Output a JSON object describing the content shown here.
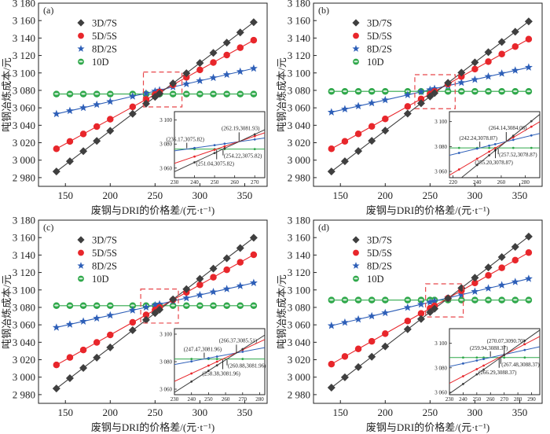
{
  "figure": {
    "xlabel": "废钢与DRI的价格差/(元·t⁻¹)",
    "ylabel": "吨钢冶炼成本/元",
    "colors": {
      "3D/7S": "#3f3f3f",
      "5D/5S": "#e8262b",
      "8D/2S": "#2e5fb8",
      "10D": "#2fa84a",
      "highlight_box": "#e8474b"
    },
    "legend": [
      {
        "name": "3D/7S",
        "marker": "diamond"
      },
      {
        "name": "5D/5S",
        "marker": "circle"
      },
      {
        "name": "8D/2S",
        "marker": "star"
      },
      {
        "name": "10D",
        "marker": "sphere"
      }
    ]
  },
  "chart_data": [
    {
      "type": "line",
      "panel_label": "(a)",
      "title": "",
      "xlabel": "废钢与DRI的价格差/(元·t⁻¹)",
      "ylabel": "吨钢冶炼成本/元",
      "xlim": [
        120,
        375
      ],
      "ylim": [
        2970,
        3180
      ],
      "xticks": [
        150,
        200,
        250,
        300,
        350
      ],
      "xtick_labels": [
        "150",
        "200",
        "250",
        "300",
        "350"
      ],
      "yticks": [
        2980,
        3000,
        3020,
        3040,
        3060,
        3080,
        3100,
        3120,
        3140,
        3160,
        3180
      ],
      "ytick_labels": [
        "2 980",
        "3 000",
        "3 020",
        "3 040",
        "3 060",
        "3 080",
        "3 100",
        "3 120",
        "3 140",
        "3 160",
        "3 180"
      ],
      "legend_position": "upper-left",
      "grid": false,
      "x": [
        140,
        155,
        170,
        185,
        200,
        225,
        240,
        250,
        255,
        270,
        285,
        300,
        315,
        330,
        345,
        360
      ],
      "series": [
        {
          "name": "3D/7S",
          "values": [
            2987.0,
            2998.7,
            3010.3,
            3022.0,
            3033.7,
            3053.1,
            3064.8,
            3072.5,
            3076.4,
            3088.1,
            3099.7,
            3111.4,
            3123.0,
            3134.7,
            3146.4,
            3158.1
          ]
        },
        {
          "name": "5D/5S",
          "values": [
            3013.0,
            3021.5,
            3030.0,
            3038.5,
            3046.9,
            3061.1,
            3069.6,
            3075.2,
            3078.1,
            3086.5,
            3095.0,
            3103.5,
            3112.0,
            3120.5,
            3129.0,
            3137.5
          ]
        },
        {
          "name": "8D/2S",
          "values": [
            3053.0,
            3056.6,
            3060.1,
            3063.7,
            3067.2,
            3073.2,
            3076.7,
            3079.1,
            3080.3,
            3083.9,
            3087.4,
            3091.0,
            3094.5,
            3098.1,
            3101.6,
            3105.2
          ]
        },
        {
          "name": "10D",
          "values": [
            3075.82,
            3075.82,
            3075.82,
            3075.82,
            3075.82,
            3075.82,
            3075.82,
            3075.82,
            3075.82,
            3075.82,
            3075.82,
            3075.82,
            3075.82,
            3075.82,
            3075.82,
            3075.82
          ]
        }
      ],
      "highlight_region": {
        "x": [
          237,
          280
        ],
        "y": [
          3061,
          3101
        ]
      },
      "inset": {
        "xlim": [
          230,
          275
        ],
        "ylim": [
          3052,
          3107
        ],
        "xticks": [
          230,
          240,
          250,
          260,
          270
        ],
        "xtick_labels": [
          "230",
          "240",
          "250",
          "260",
          "270"
        ],
        "yticks": [
          3060,
          3080,
          3100
        ],
        "ytick_labels": [
          "3 060",
          "3 080",
          "3 100"
        ],
        "marker_x": [
          240,
          250,
          255,
          270
        ],
        "annotations": [
          {
            "text": "(236.17,3075.82)",
            "x": 236.17,
            "y": 3075.82,
            "arrow": "up",
            "label_pos": "above-left"
          },
          {
            "text": "(262.19,3081.93)",
            "x": 262.19,
            "y": 3081.93,
            "arrow": "up",
            "label_pos": "above"
          },
          {
            "text": "(254.22,3075.82)",
            "x": 254.22,
            "y": 3075.82,
            "arrow": "down",
            "label_pos": "right"
          },
          {
            "text": "(251.04,3075.82)",
            "x": 251.04,
            "y": 3075.82,
            "arrow": "down",
            "label_pos": "below"
          }
        ]
      }
    },
    {
      "type": "line",
      "panel_label": "(b)",
      "title": "",
      "xlabel": "废钢与DRI的价格差/(元·t⁻¹)",
      "ylabel": "吨钢冶炼成本/元",
      "xlim": [
        120,
        375
      ],
      "ylim": [
        2970,
        3180
      ],
      "xticks": [
        150,
        200,
        250,
        300,
        350
      ],
      "xtick_labels": [
        "150",
        "200",
        "250",
        "300",
        "350"
      ],
      "yticks": [
        2980,
        3000,
        3020,
        3040,
        3060,
        3080,
        3100,
        3120,
        3140,
        3160,
        3180
      ],
      "ytick_labels": [
        "2 980",
        "3 000",
        "3 020",
        "3 040",
        "3 060",
        "3 080",
        "3 100",
        "3 120",
        "3 140",
        "3 160",
        "3 180"
      ],
      "legend_position": "upper-left",
      "grid": false,
      "x": [
        140,
        155,
        170,
        185,
        200,
        225,
        240,
        250,
        255,
        270,
        285,
        300,
        315,
        330,
        345,
        360
      ],
      "series": [
        {
          "name": "3D/7S",
          "values": [
            2987.0,
            2998.7,
            3010.5,
            3022.2,
            3033.9,
            3053.4,
            3065.2,
            3073.0,
            3076.9,
            3088.6,
            3100.4,
            3112.1,
            3123.8,
            3135.5,
            3147.2,
            3159.0
          ]
        },
        {
          "name": "5D/5S",
          "values": [
            3013.0,
            3021.6,
            3030.2,
            3038.7,
            3047.3,
            3061.6,
            3070.2,
            3075.9,
            3078.7,
            3087.3,
            3095.9,
            3104.4,
            3113.0,
            3121.6,
            3130.2,
            3138.8
          ]
        },
        {
          "name": "8D/2S",
          "values": [
            3055.0,
            3058.5,
            3062.0,
            3065.5,
            3069.0,
            3074.8,
            3078.4,
            3080.7,
            3081.9,
            3085.4,
            3088.9,
            3092.4,
            3095.9,
            3099.4,
            3102.9,
            3106.4
          ]
        },
        {
          "name": "10D",
          "values": [
            3078.87,
            3078.87,
            3078.87,
            3078.87,
            3078.87,
            3078.87,
            3078.87,
            3078.87,
            3078.87,
            3078.87,
            3078.87,
            3078.87,
            3078.87,
            3078.87,
            3078.87,
            3078.87
          ]
        }
      ],
      "highlight_region": {
        "x": [
          233,
          278
        ],
        "y": [
          3059,
          3098
        ]
      },
      "inset": {
        "xlim": [
          217,
          292
        ],
        "ylim": [
          3055,
          3108
        ],
        "xticks": [
          220,
          240,
          260,
          280
        ],
        "xtick_labels": [
          "220",
          "240",
          "260",
          "280"
        ],
        "yticks": [
          3060,
          3080,
          3100
        ],
        "ytick_labels": [
          "3 060",
          "3 080",
          "3 100"
        ],
        "marker_x": [
          225,
          240,
          250,
          255,
          270,
          285
        ],
        "annotations": [
          {
            "text": "(242.24,3078.87)",
            "x": 242.24,
            "y": 3078.87,
            "arrow": "up",
            "label_pos": "above-left"
          },
          {
            "text": "(264.14,3084.06)",
            "x": 264.14,
            "y": 3084.06,
            "arrow": "up",
            "label_pos": "above"
          },
          {
            "text": "(257.52,3078.87)",
            "x": 257.52,
            "y": 3078.87,
            "arrow": "down",
            "label_pos": "right"
          },
          {
            "text": "(255.20,3078.87)",
            "x": 255.2,
            "y": 3078.87,
            "arrow": "down",
            "label_pos": "below"
          }
        ]
      }
    },
    {
      "type": "line",
      "panel_label": "(c)",
      "title": "",
      "xlabel": "废钢与DRI的价格差/(元·t⁻¹)",
      "ylabel": "吨钢冶炼成本/元",
      "xlim": [
        120,
        375
      ],
      "ylim": [
        2970,
        3180
      ],
      "xticks": [
        150,
        200,
        250,
        300,
        350
      ],
      "xtick_labels": [
        "150",
        "200",
        "250",
        "300",
        "350"
      ],
      "yticks": [
        2980,
        3000,
        3020,
        3040,
        3060,
        3080,
        3100,
        3120,
        3140,
        3160,
        3180
      ],
      "ytick_labels": [
        "2 980",
        "3 000",
        "3 020",
        "3 040",
        "3 060",
        "3 080",
        "3 100",
        "3 120",
        "3 140",
        "3 160",
        "3 180"
      ],
      "legend_position": "upper-left",
      "grid": false,
      "x": [
        140,
        155,
        170,
        185,
        200,
        225,
        240,
        250,
        255,
        270,
        285,
        300,
        315,
        330,
        345,
        360
      ],
      "series": [
        {
          "name": "3D/7S",
          "values": [
            2987.0,
            2998.8,
            3010.6,
            3022.4,
            3034.1,
            3053.8,
            3065.6,
            3073.4,
            3077.4,
            3089.2,
            3100.9,
            3112.7,
            3124.5,
            3136.3,
            3148.0,
            3159.8
          ]
        },
        {
          "name": "5D/5S",
          "values": [
            3014.0,
            3022.6,
            3031.2,
            3039.8,
            3048.4,
            3062.8,
            3071.4,
            3077.1,
            3080.0,
            3088.6,
            3097.2,
            3105.9,
            3114.5,
            3123.1,
            3131.7,
            3140.3
          ]
        },
        {
          "name": "8D/2S",
          "values": [
            3057.0,
            3060.5,
            3064.0,
            3067.5,
            3070.9,
            3076.7,
            3080.2,
            3082.6,
            3083.7,
            3087.2,
            3090.7,
            3094.2,
            3097.7,
            3101.1,
            3104.6,
            3108.1
          ]
        },
        {
          "name": "10D",
          "values": [
            3081.96,
            3081.96,
            3081.96,
            3081.96,
            3081.96,
            3081.96,
            3081.96,
            3081.96,
            3081.96,
            3081.96,
            3081.96,
            3081.96,
            3081.96,
            3081.96,
            3081.96,
            3081.96
          ]
        }
      ],
      "highlight_region": {
        "x": [
          234,
          276
        ],
        "y": [
          3062,
          3101
        ]
      },
      "inset": {
        "xlim": [
          230,
          283
        ],
        "ylim": [
          3056,
          3104
        ],
        "xticks": [
          230,
          240,
          250,
          260,
          270,
          280
        ],
        "xtick_labels": [
          "230",
          "240",
          "250",
          "260",
          "270",
          "280"
        ],
        "yticks": [
          3060,
          3080,
          3100
        ],
        "ytick_labels": [
          "3 060",
          "3 080",
          "3 100"
        ],
        "marker_x": [
          240,
          250,
          255,
          270
        ],
        "annotations": [
          {
            "text": "(247.47,3081.96)",
            "x": 247.47,
            "y": 3081.96,
            "arrow": "up",
            "label_pos": "above-left"
          },
          {
            "text": "(266.37,3085.51)",
            "x": 266.37,
            "y": 3085.51,
            "arrow": "up",
            "label_pos": "above"
          },
          {
            "text": "(260.88,3081.96)",
            "x": 260.88,
            "y": 3081.96,
            "arrow": "down",
            "label_pos": "right"
          },
          {
            "text": "(258.38,3081.96)",
            "x": 258.38,
            "y": 3081.96,
            "arrow": "down",
            "label_pos": "below"
          }
        ]
      }
    },
    {
      "type": "line",
      "panel_label": "(d)",
      "title": "",
      "xlabel": "废钢与DRI的价格差/(元·t⁻¹)",
      "ylabel": "吨钢冶炼成本/元",
      "xlim": [
        120,
        375
      ],
      "ylim": [
        2970,
        3180
      ],
      "xticks": [
        150,
        200,
        250,
        300,
        350
      ],
      "xtick_labels": [
        "150",
        "200",
        "250",
        "300",
        "350"
      ],
      "yticks": [
        2980,
        3000,
        3020,
        3040,
        3060,
        3080,
        3100,
        3120,
        3140,
        3160,
        3180
      ],
      "ytick_labels": [
        "2 980",
        "3 000",
        "3 020",
        "3 040",
        "3 060",
        "3 080",
        "3 100",
        "3 120",
        "3 140",
        "3 160",
        "3 180"
      ],
      "legend_position": "upper-left",
      "grid": false,
      "x": [
        140,
        155,
        170,
        185,
        200,
        225,
        240,
        250,
        255,
        270,
        285,
        300,
        315,
        330,
        345,
        360
      ],
      "series": [
        {
          "name": "3D/7S",
          "values": [
            2988.0,
            2999.8,
            3011.6,
            3023.4,
            3035.2,
            3054.9,
            3066.7,
            3074.6,
            3078.5,
            3090.3,
            3102.2,
            3114.0,
            3125.8,
            3137.6,
            3149.4,
            3161.2
          ]
        },
        {
          "name": "5D/5S",
          "values": [
            3015.0,
            3023.7,
            3032.4,
            3041.1,
            3049.9,
            3064.4,
            3073.1,
            3078.9,
            3081.8,
            3090.5,
            3099.2,
            3108.0,
            3116.7,
            3125.4,
            3134.1,
            3142.8
          ]
        },
        {
          "name": "8D/2S",
          "values": [
            3059.0,
            3062.7,
            3066.3,
            3070.0,
            3073.7,
            3079.8,
            3083.5,
            3085.9,
            3087.2,
            3090.8,
            3094.5,
            3098.2,
            3101.9,
            3105.5,
            3109.2,
            3112.9
          ]
        },
        {
          "name": "10D",
          "values": [
            3088.37,
            3088.37,
            3088.37,
            3088.37,
            3088.37,
            3088.37,
            3088.37,
            3088.37,
            3088.37,
            3088.37,
            3088.37,
            3088.37,
            3088.37,
            3088.37,
            3088.37,
            3088.37
          ]
        }
      ],
      "highlight_region": {
        "x": [
          245,
          287
        ],
        "y": [
          3069,
          3107
        ]
      },
      "inset": {
        "xlim": [
          230,
          296
        ],
        "ylim": [
          3058,
          3112
        ],
        "xticks": [
          230,
          240,
          250,
          260,
          270,
          280,
          290
        ],
        "xtick_labels": [
          "230",
          "240",
          "250",
          "260",
          "270",
          "280",
          "290"
        ],
        "yticks": [
          3060,
          3080,
          3100
        ],
        "ytick_labels": [
          "3 060",
          "3 080",
          "3 100"
        ],
        "marker_x": [
          240,
          250,
          255,
          270,
          285
        ],
        "annotations": [
          {
            "text": "(259.94,3088.37)",
            "x": 259.94,
            "y": 3088.37,
            "arrow": "up",
            "label_pos": "above-left"
          },
          {
            "text": "(270.07,3090.70)",
            "x": 270.07,
            "y": 3090.7,
            "arrow": "up",
            "label_pos": "above"
          },
          {
            "text": "(267.48,3088.37)",
            "x": 267.48,
            "y": 3088.37,
            "arrow": "down",
            "label_pos": "right"
          },
          {
            "text": "(266.29,3088.37)",
            "x": 266.29,
            "y": 3088.37,
            "arrow": "down",
            "label_pos": "below"
          }
        ]
      }
    }
  ]
}
